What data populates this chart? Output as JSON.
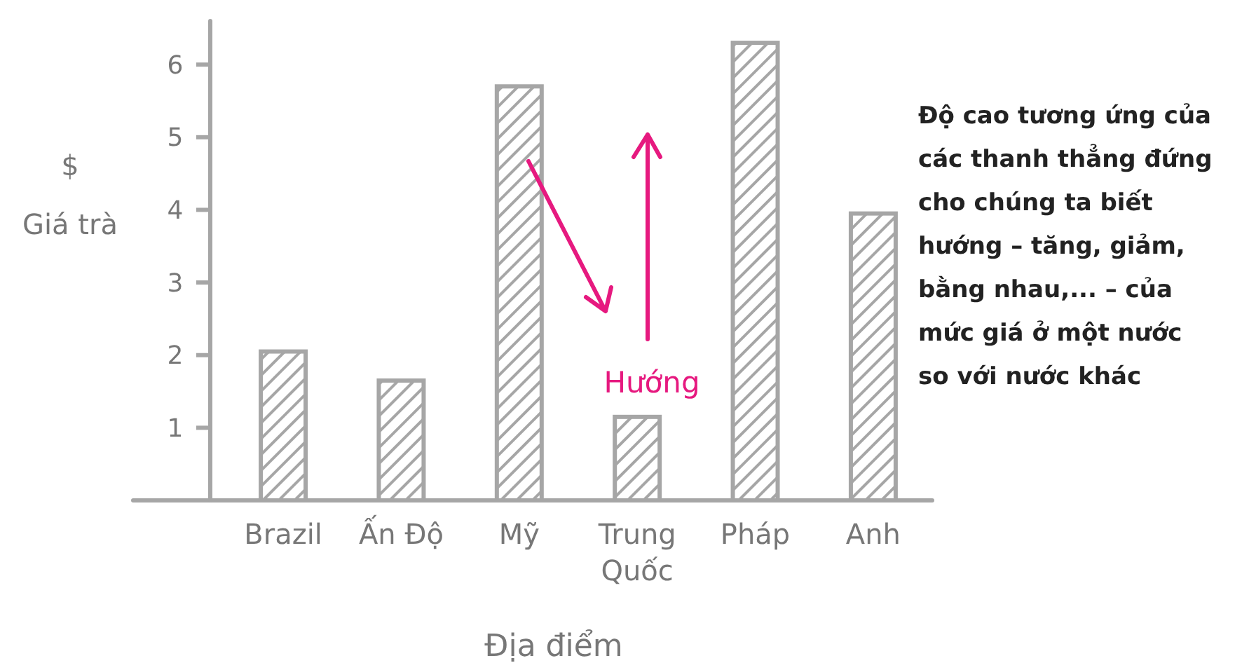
{
  "chart_data": {
    "type": "bar",
    "xlabel": "Địa điểm",
    "ylabel": "$\nGiá trà",
    "categories": [
      "Brazil",
      "Ấn Độ",
      "Mỹ",
      "Trung Quốc",
      "Pháp",
      "Anh"
    ],
    "values": [
      2.05,
      1.65,
      5.7,
      1.15,
      6.3,
      3.95
    ],
    "color": "#a6a6a6",
    "ylim": [
      0,
      6.6
    ],
    "yticks": [
      1,
      2,
      3,
      4,
      5,
      6
    ],
    "grid": false,
    "annotations": [
      "Hướng",
      "Độ cao tương ứng của\ncác thanh thẳng đứng\ncho chúng ta biết\nhướng – tăng, giảm,\nbằng nhau,... – của\nmức giá ở một nước\nso với nước khác"
    ]
  }
}
